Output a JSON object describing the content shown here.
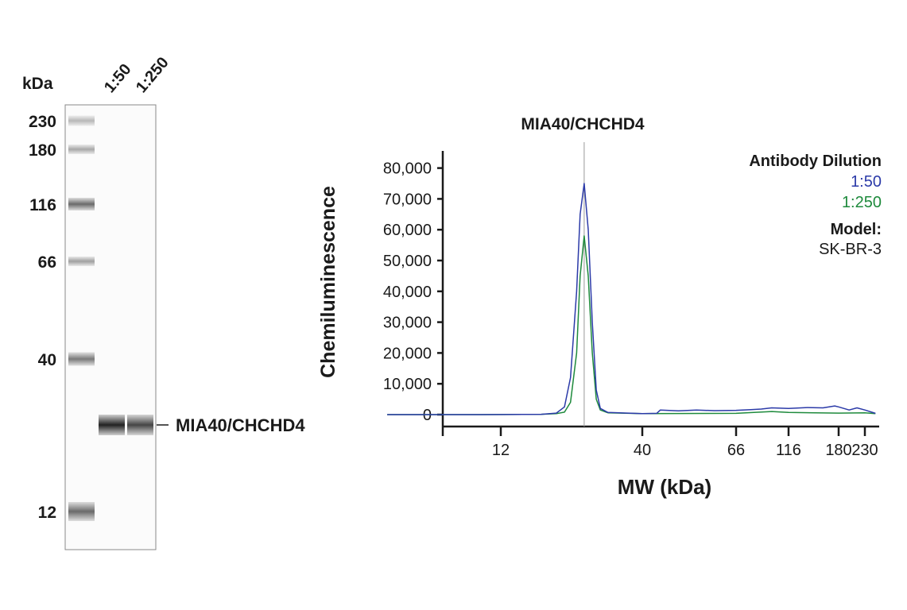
{
  "gel": {
    "unit_label": "kDa",
    "lane_labels": [
      "1:50",
      "1:250"
    ],
    "marker_labels": [
      "230",
      "180",
      "116",
      "66",
      "40",
      "12"
    ],
    "band_label": "MIA40/CHCHD4",
    "band_intensity": [
      0.85,
      0.7
    ]
  },
  "chart_data": {
    "type": "line",
    "title": "MIA40/CHCHD4",
    "xlabel": "MW (kDa)",
    "ylabel": "Chemiluminescence",
    "xticks": [
      12,
      40,
      66,
      116,
      180,
      230
    ],
    "xtick_labels": [
      "12",
      "40",
      "66",
      "116",
      "180",
      "230"
    ],
    "yticks": [
      0,
      10000,
      20000,
      30000,
      40000,
      50000,
      60000,
      70000,
      80000
    ],
    "ytick_labels": [
      "0",
      "10,000",
      "20,000",
      "30,000",
      "40,000",
      "50,000",
      "60,000",
      "70,000",
      "80,000"
    ],
    "ylim": [
      -4000,
      85000
    ],
    "reference_line_x": 28.5,
    "grid": false,
    "legend": {
      "placement": "top-right",
      "title": "Antibody Dilution",
      "model_label": "Model:",
      "model_value": "SK-BR-3"
    },
    "series": [
      {
        "name": "1:50",
        "color": "#2b3aa8",
        "x": [
          1,
          10,
          20,
          23,
          24.6,
          25.8,
          27,
          27.7,
          28.5,
          29.3,
          30.1,
          30.9,
          31.7,
          33.2,
          40,
          44,
          45,
          50,
          55,
          60,
          66,
          80,
          90,
          100,
          116,
          140,
          160,
          175,
          180,
          200,
          215,
          230,
          250
        ],
        "y": [
          0,
          0,
          100,
          500,
          2500,
          12000,
          40000,
          65000,
          75000,
          60000,
          30000,
          8000,
          2000,
          700,
          300,
          400,
          1500,
          1200,
          1500,
          1300,
          1400,
          1600,
          1800,
          2200,
          2000,
          2300,
          2200,
          2800,
          2500,
          1500,
          2200,
          1500,
          400
        ]
      },
      {
        "name": "1:250",
        "color": "#1e8a3c",
        "x": [
          1,
          10,
          20,
          23,
          24.6,
          25.8,
          27,
          27.7,
          28.5,
          29.3,
          30.1,
          30.9,
          31.7,
          33.2,
          40,
          66,
          100,
          116,
          180,
          230,
          250
        ],
        "y": [
          0,
          0,
          100,
          300,
          800,
          4000,
          20000,
          45000,
          58000,
          45000,
          20000,
          5000,
          1500,
          600,
          300,
          400,
          1000,
          700,
          500,
          600,
          300
        ]
      }
    ]
  }
}
